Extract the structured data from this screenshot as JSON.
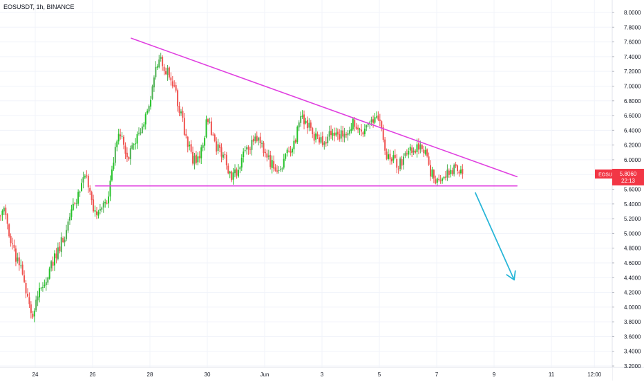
{
  "header": {
    "symbol_line": "EOSUSDT, 1h, BINANCE"
  },
  "price_tag": {
    "label": "EOSUSDT",
    "price": "5.8060",
    "countdown": "22:13"
  },
  "colors": {
    "up": "#4caf50",
    "up_bright": "#26c22a",
    "down": "#ef5350",
    "trendline": "#e040e0",
    "arrow": "#29b6d8",
    "price_tag": "#f23645",
    "grid": "#f0f3fa",
    "axis_border": "#e0e3eb"
  },
  "chart_data": {
    "type": "candlestick",
    "y_axis": {
      "min": 3.2,
      "max": 8.0,
      "tick_labels": [
        "8.0000",
        "7.8000",
        "7.6000",
        "7.4000",
        "7.2000",
        "7.0000",
        "6.8000",
        "6.6000",
        "6.4000",
        "6.2000",
        "6.0000",
        "5.8000",
        "5.6000",
        "5.4000",
        "5.2000",
        "5.0000",
        "4.8000",
        "4.6000",
        "4.4000",
        "4.2000",
        "4.0000",
        "3.8000",
        "3.6000",
        "3.4000",
        "3.2000"
      ]
    },
    "x_axis": {
      "tick_labels": [
        "24",
        "26",
        "28",
        "30",
        "Jun",
        "3",
        "5",
        "7",
        "9",
        "11",
        "12:00"
      ],
      "tick_days": [
        23.5,
        25.5,
        27.5,
        29.5,
        31.5,
        33.5,
        35.5,
        37.5,
        39.5,
        41.5,
        43.0
      ]
    },
    "anchors": [
      [
        22.0,
        5.25
      ],
      [
        22.4,
        5.3
      ],
      [
        22.8,
        4.7
      ],
      [
        23.0,
        4.5
      ],
      [
        23.2,
        4.2
      ],
      [
        23.4,
        3.9
      ],
      [
        23.6,
        4.2
      ],
      [
        23.9,
        4.4
      ],
      [
        24.2,
        4.7
      ],
      [
        24.5,
        4.95
      ],
      [
        24.8,
        5.3
      ],
      [
        25.1,
        5.7
      ],
      [
        25.3,
        5.8
      ],
      [
        25.5,
        5.4
      ],
      [
        25.7,
        5.25
      ],
      [
        25.9,
        5.35
      ],
      [
        26.1,
        5.6
      ],
      [
        26.3,
        6.2
      ],
      [
        26.5,
        6.4
      ],
      [
        26.7,
        6.0
      ],
      [
        27.0,
        6.3
      ],
      [
        27.3,
        6.5
      ],
      [
        27.6,
        7.0
      ],
      [
        27.8,
        7.4
      ],
      [
        28.1,
        7.2
      ],
      [
        28.4,
        6.9
      ],
      [
        28.7,
        6.4
      ],
      [
        29.0,
        6.0
      ],
      [
        29.3,
        6.1
      ],
      [
        29.5,
        6.6
      ],
      [
        29.8,
        6.2
      ],
      [
        30.1,
        6.0
      ],
      [
        30.4,
        5.75
      ],
      [
        30.7,
        6.0
      ],
      [
        31.0,
        6.2
      ],
      [
        31.3,
        6.3
      ],
      [
        31.6,
        6.0
      ],
      [
        31.9,
        5.85
      ],
      [
        32.2,
        6.0
      ],
      [
        32.5,
        6.2
      ],
      [
        32.8,
        6.6
      ],
      [
        33.1,
        6.4
      ],
      [
        33.4,
        6.25
      ],
      [
        33.7,
        6.3
      ],
      [
        34.0,
        6.35
      ],
      [
        34.3,
        6.3
      ],
      [
        34.6,
        6.5
      ],
      [
        34.9,
        6.4
      ],
      [
        35.2,
        6.55
      ],
      [
        35.5,
        6.6
      ],
      [
        35.7,
        6.1
      ],
      [
        35.9,
        6.0
      ],
      [
        36.2,
        5.95
      ],
      [
        36.5,
        6.1
      ],
      [
        36.8,
        6.15
      ],
      [
        37.1,
        6.15
      ],
      [
        37.3,
        5.8
      ],
      [
        37.6,
        5.72
      ],
      [
        37.9,
        5.85
      ],
      [
        38.2,
        5.9
      ],
      [
        38.4,
        5.82
      ]
    ],
    "start_day": 22.0,
    "end_day": 38.4,
    "candle_count": 280,
    "seed": 13,
    "last_price": 5.806,
    "trendlines": [
      {
        "name": "descending-resistance",
        "start": [
          26.85,
          7.65
        ],
        "end": [
          40.3,
          5.77
        ]
      },
      {
        "name": "horizontal-support",
        "start": [
          25.6,
          5.645
        ],
        "end": [
          40.3,
          5.645
        ]
      }
    ],
    "arrow": {
      "start": [
        38.85,
        5.55
      ],
      "end": [
        40.2,
        4.37
      ]
    },
    "grid": true
  }
}
